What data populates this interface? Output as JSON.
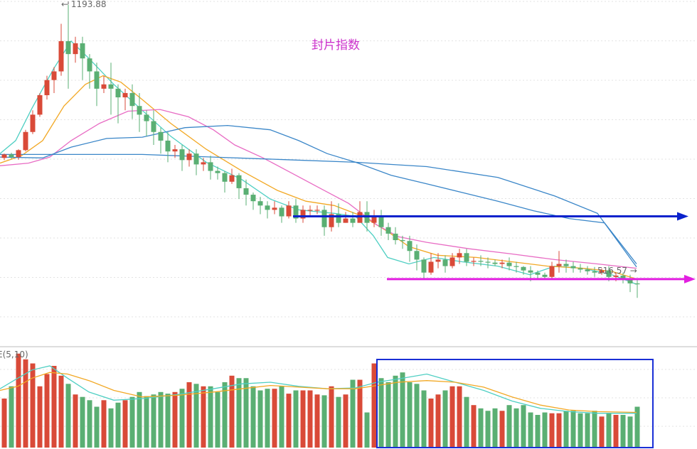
{
  "colors": {
    "up": "#d94a38",
    "down": "#5aaf73",
    "ma5": "#4fcfc3",
    "ma10": "#f2a824",
    "ma20": "#e86cc4",
    "ma60": "#3a86c8",
    "ma120": "#3a86c8",
    "blue_marker": "#0a22cc",
    "magenta_marker": "#e21fe0",
    "grid": "#e3e3e3",
    "divider": "#bdbdbd",
    "box": "#1a2fd6"
  },
  "chart_data": [
    {
      "type": "candlestick",
      "title": "封片指数",
      "high_label": "← 1193.88",
      "low_label": "516.57 →",
      "high": 1193.88,
      "low": 516.57,
      "ylim": [
        430,
        1205
      ],
      "candles": [
        [
          840,
          848,
          835,
          850
        ],
        [
          848,
          842,
          838,
          852
        ],
        [
          842,
          858,
          836,
          860
        ],
        [
          858,
          900,
          855,
          905
        ],
        [
          900,
          940,
          895,
          950
        ],
        [
          940,
          985,
          935,
          990
        ],
        [
          985,
          1020,
          975,
          1030
        ],
        [
          1020,
          1040,
          990,
          1050
        ],
        [
          1040,
          1110,
          1030,
          1150
        ],
        [
          1110,
          1080,
          1000,
          1193.88
        ],
        [
          1080,
          1105,
          1060,
          1120
        ],
        [
          1105,
          1070,
          1020,
          1120
        ],
        [
          1070,
          1040,
          1000,
          1080
        ],
        [
          1040,
          1000,
          960,
          1060
        ],
        [
          1000,
          1010,
          990,
          1030
        ],
        [
          1010,
          1000,
          940,
          1060
        ],
        [
          1000,
          980,
          920,
          1010
        ],
        [
          980,
          990,
          950,
          1000
        ],
        [
          990,
          960,
          930,
          1010
        ],
        [
          960,
          940,
          900,
          990
        ],
        [
          940,
          925,
          890,
          950
        ],
        [
          925,
          900,
          870,
          950
        ],
        [
          900,
          880,
          850,
          910
        ],
        [
          880,
          855,
          830,
          900
        ],
        [
          855,
          860,
          840,
          870
        ],
        [
          860,
          835,
          810,
          870
        ],
        [
          835,
          850,
          820,
          860
        ],
        [
          850,
          825,
          800,
          860
        ],
        [
          825,
          830,
          810,
          840
        ],
        [
          830,
          810,
          790,
          845
        ],
        [
          810,
          805,
          790,
          820
        ],
        [
          805,
          785,
          760,
          810
        ],
        [
          785,
          800,
          780,
          815
        ],
        [
          800,
          770,
          745,
          805
        ],
        [
          770,
          755,
          730,
          790
        ],
        [
          755,
          740,
          720,
          760
        ],
        [
          740,
          730,
          710,
          750
        ],
        [
          730,
          720,
          700,
          740
        ],
        [
          720,
          725,
          710,
          740
        ],
        [
          725,
          705,
          690,
          730
        ],
        [
          705,
          730,
          700,
          740
        ],
        [
          730,
          700,
          690,
          745
        ],
        [
          700,
          720,
          690,
          730
        ],
        [
          720,
          720,
          705,
          730
        ],
        [
          720,
          720,
          710,
          730
        ],
        [
          720,
          680,
          660,
          730
        ],
        [
          680,
          710,
          670,
          740
        ],
        [
          710,
          690,
          680,
          735
        ],
        [
          690,
          700,
          690,
          715
        ],
        [
          700,
          690,
          680,
          715
        ],
        [
          690,
          715,
          690,
          740
        ],
        [
          715,
          690,
          670,
          740
        ],
        [
          690,
          705,
          680,
          720
        ],
        [
          705,
          680,
          660,
          720
        ],
        [
          680,
          665,
          650,
          690
        ],
        [
          665,
          650,
          640,
          680
        ],
        [
          650,
          648,
          630,
          660
        ],
        [
          648,
          625,
          600,
          660
        ],
        [
          625,
          605,
          580,
          640
        ],
        [
          605,
          575,
          560,
          610
        ],
        [
          575,
          600,
          570,
          620
        ],
        [
          600,
          605,
          585,
          620
        ],
        [
          605,
          590,
          575,
          615
        ],
        [
          590,
          610,
          585,
          620
        ],
        [
          610,
          620,
          595,
          630
        ],
        [
          620,
          600,
          590,
          630
        ],
        [
          600,
          602,
          590,
          610
        ],
        [
          602,
          600,
          590,
          615
        ],
        [
          600,
          598,
          585,
          610
        ],
        [
          598,
          595,
          590,
          605
        ],
        [
          595,
          598,
          585,
          605
        ],
        [
          598,
          590,
          580,
          610
        ],
        [
          590,
          588,
          575,
          600
        ],
        [
          588,
          580,
          570,
          590
        ],
        [
          580,
          575,
          555,
          590
        ],
        [
          575,
          570,
          560,
          580
        ],
        [
          570,
          565,
          560,
          575
        ],
        [
          565,
          590,
          560,
          600
        ],
        [
          590,
          595,
          575,
          625
        ],
        [
          595,
          590,
          575,
          605
        ],
        [
          590,
          585,
          575,
          600
        ],
        [
          585,
          582,
          575,
          595
        ],
        [
          582,
          578,
          570,
          590
        ],
        [
          578,
          575,
          565,
          588
        ],
        [
          575,
          580,
          570,
          585
        ],
        [
          580,
          565,
          555,
          590
        ],
        [
          565,
          568,
          555,
          575
        ],
        [
          568,
          560,
          550,
          575
        ],
        [
          560,
          550,
          530,
          570
        ],
        [
          550,
          548,
          516.57,
          560
        ]
      ],
      "ma_series": [
        {
          "key": "ma5",
          "values": [
            [
              0,
              850
            ],
            [
              22,
              880
            ],
            [
              45,
              955
            ],
            [
              75,
              1045
            ],
            [
              100,
              1110
            ],
            [
              125,
              1070
            ],
            [
              160,
              1010
            ],
            [
              200,
              950
            ],
            [
              240,
              890
            ],
            [
              290,
              830
            ],
            [
              340,
              790
            ],
            [
              380,
              745
            ],
            [
              420,
              720
            ],
            [
              470,
              712
            ],
            [
              500,
              705
            ],
            [
              525,
              660
            ],
            [
              545,
              610
            ],
            [
              575,
              595
            ],
            [
              610,
              610
            ],
            [
              650,
              600
            ],
            [
              700,
              590
            ],
            [
              745,
              570
            ],
            [
              780,
              590
            ],
            [
              820,
              585
            ],
            [
              860,
              570
            ],
            [
              895,
              548
            ]
          ]
        },
        {
          "key": "ma10",
          "values": [
            [
              0,
              828
            ],
            [
              30,
              845
            ],
            [
              60,
              880
            ],
            [
              90,
              960
            ],
            [
              120,
              1010
            ],
            [
              145,
              1030
            ],
            [
              170,
              1015
            ],
            [
              200,
              975
            ],
            [
              240,
              920
            ],
            [
              290,
              860
            ],
            [
              340,
              810
            ],
            [
              390,
              765
            ],
            [
              430,
              740
            ],
            [
              470,
              730
            ],
            [
              510,
              705
            ],
            [
              545,
              670
            ],
            [
              575,
              635
            ],
            [
              615,
              615
            ],
            [
              670,
              610
            ],
            [
              720,
              600
            ],
            [
              770,
              590
            ],
            [
              820,
              585
            ],
            [
              860,
              578
            ],
            [
              895,
              560
            ]
          ]
        },
        {
          "key": "ma20",
          "values": [
            [
              0,
              822
            ],
            [
              40,
              828
            ],
            [
              70,
              842
            ],
            [
              100,
              880
            ],
            [
              140,
              920
            ],
            [
              180,
              948
            ],
            [
              225,
              952
            ],
            [
              265,
              935
            ],
            [
              300,
              905
            ],
            [
              330,
              870
            ],
            [
              370,
              840
            ],
            [
              410,
              805
            ],
            [
              450,
              770
            ],
            [
              490,
              735
            ],
            [
              530,
              685
            ],
            [
              560,
              658
            ],
            [
              600,
              645
            ],
            [
              660,
              630
            ],
            [
              720,
              618
            ],
            [
              780,
              605
            ],
            [
              840,
              595
            ],
            [
              895,
              585
            ]
          ]
        },
        {
          "key": "ma60",
          "values": [
            [
              0,
              842
            ],
            [
              60,
              840
            ],
            [
              100,
              865
            ],
            [
              150,
              885
            ],
            [
              200,
              888
            ],
            [
              260,
              910
            ],
            [
              320,
              915
            ],
            [
              380,
              905
            ],
            [
              420,
              880
            ],
            [
              460,
              850
            ],
            [
              500,
              830
            ],
            [
              550,
              800
            ],
            [
              600,
              780
            ],
            [
              650,
              760
            ],
            [
              700,
              740
            ],
            [
              750,
              718
            ],
            [
              800,
              700
            ],
            [
              850,
              690
            ],
            [
              895,
              595
            ]
          ]
        },
        {
          "key": "ma120",
          "values": [
            [
              0,
              848
            ],
            [
              100,
              848
            ],
            [
              200,
              848
            ],
            [
              300,
              842
            ],
            [
              400,
              836
            ],
            [
              500,
              830
            ],
            [
              600,
              820
            ],
            [
              700,
              795
            ],
            [
              780,
              752
            ],
            [
              840,
              712
            ],
            [
              895,
              588
            ]
          ]
        }
      ]
    },
    {
      "type": "bar",
      "title": "E(5,10)",
      "ylim": [
        0,
        120
      ],
      "volumes": [
        60,
        75,
        115,
        108,
        103,
        75,
        90,
        100,
        88,
        78,
        65,
        62,
        58,
        50,
        58,
        48,
        55,
        58,
        62,
        68,
        63,
        65,
        68,
        66,
        68,
        72,
        80,
        78,
        75,
        75,
        68,
        80,
        88,
        85,
        85,
        75,
        70,
        72,
        72,
        75,
        66,
        70,
        70,
        70,
        65,
        64,
        75,
        62,
        65,
        83,
        83,
        43,
        103,
        85,
        80,
        88,
        92,
        80,
        78,
        70,
        60,
        65,
        70,
        75,
        75,
        62,
        52,
        48,
        45,
        48,
        45,
        52,
        48,
        52,
        43,
        40,
        43,
        42,
        42,
        45,
        45,
        42,
        42,
        45,
        38,
        42,
        40,
        40,
        38,
        50
      ],
      "ma_series": [
        {
          "key": "ma5",
          "values": [
            [
              0,
              72
            ],
            [
              25,
              85
            ],
            [
              45,
              95
            ],
            [
              70,
              100
            ],
            [
              95,
              85
            ],
            [
              125,
              68
            ],
            [
              160,
              58
            ],
            [
              200,
              60
            ],
            [
              250,
              65
            ],
            [
              300,
              72
            ],
            [
              340,
              78
            ],
            [
              380,
              80
            ],
            [
              420,
              75
            ],
            [
              460,
              72
            ],
            [
              500,
              73
            ],
            [
              530,
              80
            ],
            [
              560,
              84
            ],
            [
              600,
              90
            ],
            [
              640,
              80
            ],
            [
              680,
              70
            ],
            [
              720,
              57
            ],
            [
              760,
              48
            ],
            [
              800,
              44
            ],
            [
              840,
              42
            ],
            [
              895,
              42
            ]
          ]
        },
        {
          "key": "ma10",
          "values": [
            [
              0,
              70
            ],
            [
              25,
              75
            ],
            [
              45,
              85
            ],
            [
              70,
              92
            ],
            [
              95,
              90
            ],
            [
              125,
              82
            ],
            [
              160,
              70
            ],
            [
              200,
              62
            ],
            [
              250,
              64
            ],
            [
              300,
              68
            ],
            [
              340,
              72
            ],
            [
              380,
              76
            ],
            [
              420,
              74
            ],
            [
              460,
              72
            ],
            [
              500,
              72
            ],
            [
              530,
              76
            ],
            [
              560,
              80
            ],
            [
              600,
              82
            ],
            [
              640,
              80
            ],
            [
              680,
              74
            ],
            [
              720,
              62
            ],
            [
              760,
              52
            ],
            [
              800,
              46
            ],
            [
              840,
              44
            ],
            [
              895,
              43
            ]
          ]
        }
      ]
    }
  ]
}
